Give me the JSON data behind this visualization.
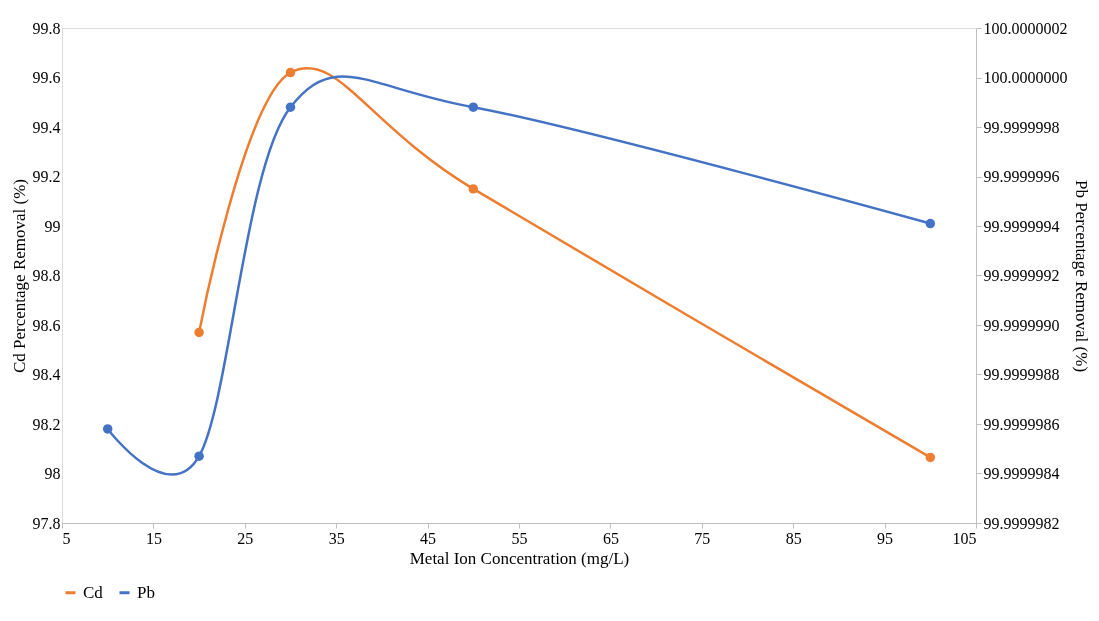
{
  "chart_data": {
    "type": "line",
    "xlabel": "Metal Ion Concentration (mg/L)",
    "ylabel": "Cd Percentage Removal (%)",
    "y2label": "Pb Percentage Removal (%)",
    "x": [
      10,
      20,
      30,
      50,
      100
    ],
    "series": [
      {
        "name": "Cd",
        "color": "#ed7d31",
        "values": [
          null,
          98.57,
          99.62,
          99.15,
          98.065
        ]
      },
      {
        "name": "Pb",
        "color": "#4472c4",
        "axis": "y2",
        "values": [
          99.99999858,
          99.99999847,
          99.99999988,
          99.99999988,
          99.99999941
        ]
      }
    ],
    "xlim": [
      5,
      105
    ],
    "xticks": [
      5,
      15,
      25,
      35,
      45,
      55,
      65,
      75,
      85,
      95,
      105
    ],
    "ylim": [
      97.8,
      99.8
    ],
    "yticks": [
      97.8,
      98,
      98.2,
      98.4,
      98.6,
      98.8,
      99,
      99.2,
      99.4,
      99.6,
      99.8
    ],
    "y2lim": [
      99.9999982,
      100.0000002
    ],
    "y2ticks": [
      99.9999982,
      99.9999984,
      99.9999986,
      99.9999988,
      {
        "value": 99.999999,
        "label": "99.9999990"
      },
      99.9999992,
      99.9999994,
      99.9999996,
      99.9999998,
      {
        "value": 100,
        "label": "100.0000000"
      },
      100.0000002
    ],
    "marker": "circle",
    "line_style": "solid",
    "grid": false,
    "legend": "bottom"
  }
}
